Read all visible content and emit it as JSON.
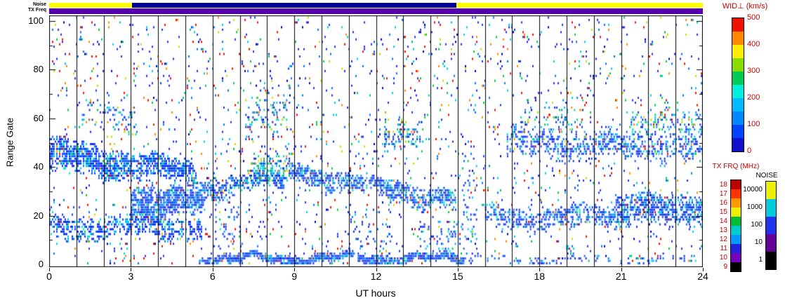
{
  "x_axis": {
    "label": "UT hours",
    "ticks": [
      0,
      3,
      6,
      9,
      12,
      15,
      18,
      21,
      24
    ]
  },
  "y_axis": {
    "label": "Range Gate",
    "ticks": [
      0,
      20,
      40,
      60,
      80,
      100
    ]
  },
  "strips": {
    "noise": {
      "label": "Noise",
      "segments": [
        {
          "t0": 0.0,
          "t1": 3.05,
          "color": "#ffff00"
        },
        {
          "t0": 3.05,
          "t1": 14.95,
          "color": "#000099"
        },
        {
          "t0": 14.95,
          "t1": 24.0,
          "color": "#ffff00"
        }
      ]
    },
    "tx_freq": {
      "label": "TX Freq",
      "segments": [
        {
          "t0": 0.0,
          "t1": 24.0,
          "color": "#5500aa"
        }
      ]
    }
  },
  "colorbars": {
    "wid": {
      "title": "WID⊥ (km/s)",
      "ticks": [
        0,
        100,
        200,
        300,
        400,
        500
      ],
      "tick_color": "#cc0000",
      "colors_bottom_to_top": [
        "#1111cc",
        "#0044ff",
        "#0088ff",
        "#00bbff",
        "#00eedd",
        "#00cc55",
        "#88dd00",
        "#ffee00",
        "#ff8800",
        "#ee1100"
      ]
    },
    "tx_frq": {
      "title": "TX FRQ (MHz)",
      "ticks_bottom_to_top": [
        9,
        10,
        11,
        12,
        13,
        14,
        15,
        16,
        17,
        18
      ],
      "tick_color": "#cc0000",
      "colors_bottom_to_top": [
        "#000000",
        "#7700bb",
        "#2222dd",
        "#0099ff",
        "#00cccc",
        "#00bb33",
        "#eeee00",
        "#ff9900",
        "#ff3300",
        "#bb0000"
      ]
    },
    "noise": {
      "title": "NOISE",
      "ticks_bottom_to_top": [
        1,
        10,
        100,
        1000,
        10000
      ],
      "tick_color": "#000000",
      "colors_bottom_to_top": [
        "#000000",
        "#660099",
        "#2233ee",
        "#00ccdd",
        "#eeee00"
      ]
    }
  },
  "chart_data": {
    "type": "heatmap",
    "title": "",
    "xlabel": "UT hours",
    "ylabel": "Range Gate",
    "xlim": [
      0,
      24
    ],
    "ylim": [
      0,
      102
    ],
    "xticks": [
      0,
      3,
      6,
      9,
      12,
      15,
      18,
      21,
      24
    ],
    "yticks": [
      0,
      20,
      40,
      60,
      80,
      100
    ],
    "value_label": "WID⊥ (km/s)",
    "value_range": [
      0,
      500
    ],
    "legend_position": "right",
    "grid": "vertical lines every 1 hour, black",
    "description": "Radar range-time plot of perpendicular spectral width: dense low-width (blue) backscatter bands plus sparse multicolour speckle over 24 h UT",
    "palettes": {
      "blue": [
        [
          "#1133ee",
          0.46
        ],
        [
          "#2255ff",
          0.2
        ],
        [
          "#0077ff",
          0.12
        ],
        [
          "#00aaff",
          0.08
        ],
        [
          "#00cfee",
          0.06
        ],
        [
          "#00eebb",
          0.04
        ],
        [
          "#00cc55",
          0.02
        ],
        [
          "#ff9900",
          0.01
        ],
        [
          "#ee1100",
          0.01
        ]
      ],
      "bluecyan": [
        [
          "#1133ee",
          0.3
        ],
        [
          "#0088ff",
          0.18
        ],
        [
          "#00ccee",
          0.18
        ],
        [
          "#00dd99",
          0.1
        ],
        [
          "#00cc44",
          0.1
        ],
        [
          "#aadd00",
          0.05
        ],
        [
          "#ffcc00",
          0.03
        ],
        [
          "#ff8800",
          0.03
        ],
        [
          "#ee2200",
          0.03
        ]
      ],
      "noise": [
        [
          "#2233ee",
          0.36
        ],
        [
          "#0077ff",
          0.1
        ],
        [
          "#00ccee",
          0.12
        ],
        [
          "#00cc44",
          0.1
        ],
        [
          "#ccdd00",
          0.05
        ],
        [
          "#ff8800",
          0.07
        ],
        [
          "#ee1100",
          0.14
        ],
        [
          "#0000aa",
          0.06
        ]
      ]
    },
    "sparse_noise": {
      "density_per_cell": 0.042,
      "palette": "noise"
    },
    "bands": [
      {
        "t0": 0.0,
        "t1": 5.4,
        "g0": [
          37,
          52
        ],
        "g1": [
          33,
          42
        ],
        "density": 0.7,
        "palette": "blue"
      },
      {
        "t0": 0.0,
        "t1": 5.6,
        "g0": [
          10,
          20
        ],
        "g1": [
          11,
          19
        ],
        "density": 0.5,
        "palette": "blue"
      },
      {
        "t0": 3.0,
        "t1": 5.7,
        "g0": [
          17,
          32
        ],
        "g1": [
          20,
          33
        ],
        "density": 0.75,
        "palette": "blue"
      },
      {
        "t0": 5.7,
        "t1": 8.6,
        "g0": [
          27,
          35
        ],
        "g1": [
          31,
          38
        ],
        "density": 0.55,
        "palette": "blue"
      },
      {
        "t0": 7.4,
        "t1": 8.8,
        "g0": [
          33,
          46
        ],
        "g1": [
          35,
          46
        ],
        "density": 0.45,
        "palette": "bluecyan"
      },
      {
        "t0": 7.2,
        "t1": 8.9,
        "g0": [
          50,
          72
        ],
        "g1": [
          50,
          72
        ],
        "density": 0.18,
        "palette": "bluecyan"
      },
      {
        "t0": 5.5,
        "t1": 15.2,
        "g0": [
          0,
          4
        ],
        "g1": [
          0,
          4
        ],
        "density": 0.9,
        "palette": "blue"
      },
      {
        "t0": 15.2,
        "t1": 24.0,
        "g0": [
          0,
          3
        ],
        "g1": [
          0,
          3
        ],
        "density": 0.25,
        "palette": "blue"
      },
      {
        "t0": 8.8,
        "t1": 14.9,
        "g0": [
          33,
          42
        ],
        "g1": [
          22,
          30
        ],
        "density": 0.6,
        "palette": "blue"
      },
      {
        "t0": 12.3,
        "t1": 13.7,
        "g0": [
          47,
          60
        ],
        "g1": [
          47,
          58
        ],
        "density": 0.3,
        "palette": "bluecyan"
      },
      {
        "t0": 16.0,
        "t1": 21.0,
        "g0": [
          14,
          23
        ],
        "g1": [
          15,
          24
        ],
        "density": 0.45,
        "palette": "blue"
      },
      {
        "t0": 20.8,
        "t1": 24.0,
        "g0": [
          15,
          28
        ],
        "g1": [
          17,
          29
        ],
        "density": 0.6,
        "palette": "blue"
      },
      {
        "t0": 16.8,
        "t1": 24.0,
        "g0": [
          44,
          56
        ],
        "g1": [
          42,
          53
        ],
        "density": 0.4,
        "palette": "blue"
      },
      {
        "t0": 21.3,
        "t1": 24.0,
        "g0": [
          52,
          63
        ],
        "g1": [
          50,
          62
        ],
        "density": 0.22,
        "palette": "bluecyan"
      },
      {
        "t0": 1.2,
        "t1": 3.2,
        "g0": [
          52,
          66
        ],
        "g1": [
          52,
          66
        ],
        "density": 0.15,
        "palette": "bluecyan"
      },
      {
        "t0": 13.6,
        "t1": 15.0,
        "g0": [
          4,
          18
        ],
        "g1": [
          4,
          18
        ],
        "density": 0.18,
        "palette": "blue"
      },
      {
        "t0": 15.15,
        "t1": 15.7,
        "g0": [
          0,
          45
        ],
        "g1": [
          0,
          45
        ],
        "density": 0.1,
        "palette": "blue"
      },
      {
        "t0": 6.1,
        "t1": 7.0,
        "g0": [
          0,
          30
        ],
        "g1": [
          0,
          30
        ],
        "density": 0.12,
        "palette": "blue"
      },
      {
        "t0": 10.8,
        "t1": 12.6,
        "g0": [
          0,
          25
        ],
        "g1": [
          0,
          25
        ],
        "density": 0.09,
        "palette": "blue"
      },
      {
        "t0": 17.3,
        "t1": 19.6,
        "g0": [
          55,
          70
        ],
        "g1": [
          52,
          66
        ],
        "density": 0.12,
        "palette": "bluecyan"
      }
    ]
  }
}
